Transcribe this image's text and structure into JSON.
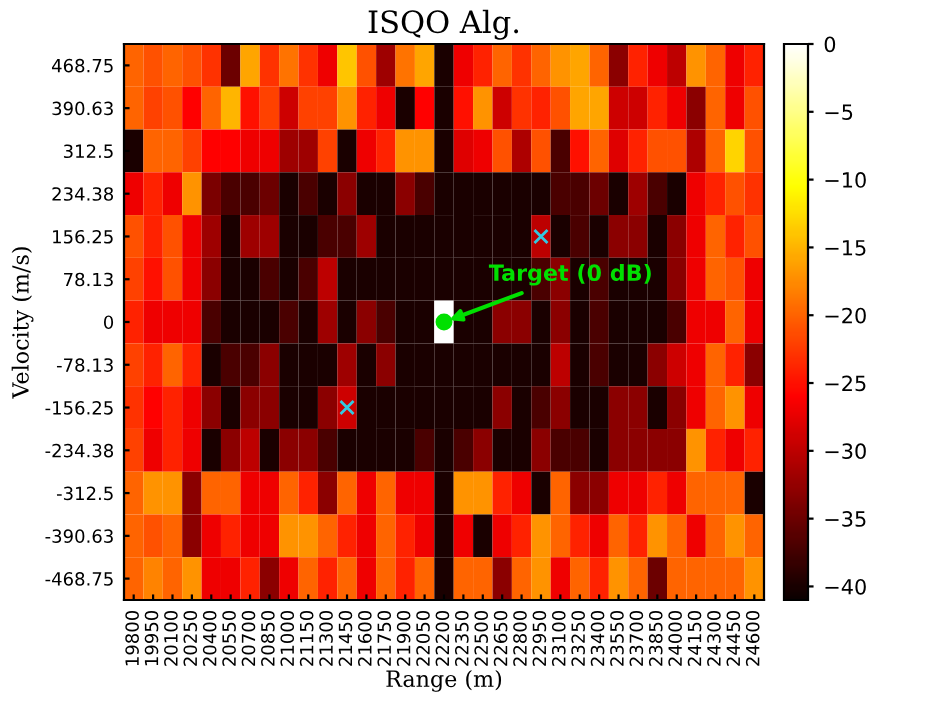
{
  "chart_data": {
    "type": "heatmap",
    "title": "ISQO Alg.",
    "xlabel": "Range (m)",
    "ylabel": "Velocity (m/s)",
    "categories": [
      "19800",
      "19950",
      "20100",
      "20250",
      "20400",
      "20550",
      "20700",
      "20850",
      "21000",
      "21150",
      "21300",
      "21450",
      "21600",
      "21750",
      "21900",
      "22050",
      "22200",
      "22350",
      "22500",
      "22650",
      "22800",
      "22950",
      "23100",
      "23250",
      "23400",
      "23550",
      "23700",
      "23850",
      "24000",
      "24150",
      "24300",
      "24450",
      "24600"
    ],
    "ylim": [
      -507.8125,
      507.8125
    ],
    "yticks": [
      {
        "value": 468.75,
        "label": "468.75"
      },
      {
        "value": 390.625,
        "label": "390.63"
      },
      {
        "value": 312.5,
        "label": "312.5"
      },
      {
        "value": 234.375,
        "label": "234.38"
      },
      {
        "value": 156.25,
        "label": "156.25"
      },
      {
        "value": 78.125,
        "label": "78.13"
      },
      0,
      {
        "value": -78.125,
        "label": "-78.13"
      },
      {
        "value": -156.25,
        "label": "-156.25"
      },
      {
        "value": -234.375,
        "label": "-234.38"
      },
      {
        "value": -312.5,
        "label": "-312.5"
      },
      {
        "value": -390.625,
        "label": "-390.63"
      },
      {
        "value": -468.75,
        "label": "-468.75"
      }
    ],
    "cells": [
      [
        -20,
        -21,
        -20,
        -21,
        -23,
        -35,
        -16,
        -23,
        -19,
        -23,
        -27,
        -14,
        -21,
        -32,
        -19,
        -16,
        -40,
        -27,
        -24,
        -20,
        -23,
        -20,
        -17,
        -16,
        -20,
        -33,
        -24,
        -27,
        -30,
        -17,
        -20,
        -27,
        -24
      ],
      [
        -20,
        -22,
        -21,
        -26,
        -20,
        -15,
        -25,
        -22,
        -29,
        -22,
        -22,
        -17,
        -24,
        -27,
        -40,
        -26,
        -40,
        -25,
        -17,
        -29,
        -23,
        -24,
        -21,
        -16,
        -16,
        -29,
        -29,
        -24,
        -27,
        -33,
        -20,
        -27,
        -21
      ],
      [
        -40,
        -20,
        -20,
        -22,
        -26,
        -26,
        -27,
        -27,
        -32,
        -32,
        -22,
        -40,
        -27,
        -24,
        -17,
        -17,
        -40,
        -28,
        -27,
        -21,
        -31,
        -21,
        -37,
        -25,
        -20,
        -28,
        -24,
        -21,
        -21,
        -31,
        -20,
        -13,
        -21
      ],
      [
        -27,
        -24,
        -27,
        -17,
        -34,
        -37,
        -37,
        -35,
        -40,
        -37,
        -40,
        -33,
        -40,
        -40,
        -33,
        -37,
        -40,
        -40,
        -40,
        -40,
        -40,
        -40,
        -37,
        -37,
        -35,
        -40,
        -32,
        -37,
        -40,
        -27,
        -24,
        -21,
        -23
      ],
      [
        -21,
        -24,
        -21,
        -27,
        -32,
        -40,
        -32,
        -32,
        -40,
        -40,
        -37,
        -37,
        -32,
        -40,
        -40,
        -40,
        -40,
        -40,
        -40,
        -40,
        -40,
        -30,
        -40,
        -37,
        -40,
        -33,
        -33,
        -40,
        -33,
        -27,
        -20,
        -24,
        -21
      ],
      [
        -22,
        -25,
        -21,
        -27,
        -33,
        -40,
        -40,
        -37,
        -40,
        -37,
        -30,
        -40,
        -40,
        -40,
        -40,
        -40,
        -40,
        -40,
        -40,
        -40,
        -40,
        -37,
        -33,
        -40,
        -37,
        -40,
        -40,
        -40,
        -33,
        -27,
        -20,
        -21,
        -27
      ],
      [
        -24,
        -27,
        -27,
        -27,
        -37,
        -40,
        -40,
        -40,
        -37,
        -40,
        -32,
        -40,
        -33,
        -37,
        -40,
        -40,
        0,
        -40,
        -40,
        -33,
        -33,
        -40,
        -33,
        -40,
        -37,
        -40,
        -40,
        -40,
        -37,
        -27,
        -27,
        -20,
        -27
      ],
      [
        -22,
        -24,
        -20,
        -24,
        -40,
        -37,
        -37,
        -33,
        -40,
        -40,
        -40,
        -32,
        -40,
        -33,
        -40,
        -40,
        -40,
        -40,
        -40,
        -40,
        -40,
        -40,
        -30,
        -40,
        -37,
        -40,
        -40,
        -33,
        -29,
        -27,
        -20,
        -24,
        -33
      ],
      [
        -23,
        -26,
        -24,
        -27,
        -33,
        -40,
        -33,
        -33,
        -40,
        -40,
        -33,
        -29,
        -40,
        -40,
        -40,
        -40,
        -40,
        -40,
        -40,
        -33,
        -40,
        -37,
        -33,
        -40,
        -40,
        -33,
        -33,
        -40,
        -33,
        -27,
        -20,
        -17,
        -27
      ],
      [
        -22,
        -27,
        -24,
        -27,
        -40,
        -33,
        -30,
        -40,
        -33,
        -33,
        -37,
        -40,
        -40,
        -40,
        -40,
        -37,
        -40,
        -37,
        -33,
        -40,
        -40,
        -33,
        -37,
        -37,
        -40,
        -33,
        -33,
        -33,
        -33,
        -17,
        -24,
        -27,
        -24
      ],
      [
        -20,
        -17,
        -17,
        -33,
        -20,
        -20,
        -27,
        -27,
        -20,
        -24,
        -33,
        -20,
        -27,
        -20,
        -27,
        -27,
        -40,
        -17,
        -17,
        -24,
        -27,
        -40,
        -20,
        -33,
        -33,
        -27,
        -27,
        -24,
        -27,
        -20,
        -20,
        -20,
        -40
      ],
      [
        -20,
        -21,
        -20,
        -33,
        -27,
        -24,
        -27,
        -27,
        -17,
        -17,
        -20,
        -24,
        -27,
        -20,
        -24,
        -27,
        -40,
        -27,
        -40,
        -27,
        -24,
        -17,
        -20,
        -24,
        -27,
        -20,
        -24,
        -17,
        -20,
        -27,
        -20,
        -17,
        -20
      ],
      [
        -20,
        -18,
        -20,
        -17,
        -27,
        -27,
        -24,
        -33,
        -27,
        -20,
        -24,
        -20,
        -27,
        -20,
        -24,
        -20,
        -40,
        -20,
        -20,
        -33,
        -20,
        -17,
        -27,
        -20,
        -24,
        -17,
        -20,
        -35,
        -20,
        -20,
        -20,
        -20,
        -17
      ]
    ],
    "clim": [
      -41,
      0
    ],
    "cticks": [
      0,
      -5,
      -10,
      -15,
      -20,
      -25,
      -30,
      -35,
      -40
    ],
    "series": [
      {
        "type": "scatter",
        "marker": "cross",
        "color": "#33c8e0",
        "x": [
          "21450",
          "22950"
        ],
        "values": [
          -156.25,
          156.25
        ]
      },
      {
        "type": "scatter",
        "marker": "circle",
        "color": "#00e000",
        "x": [
          "22200"
        ],
        "values": [
          0
        ]
      }
    ],
    "annotations": [
      {
        "text": "Target (0 dB)",
        "x": "22200",
        "y": 0
      }
    ],
    "grid": false
  }
}
